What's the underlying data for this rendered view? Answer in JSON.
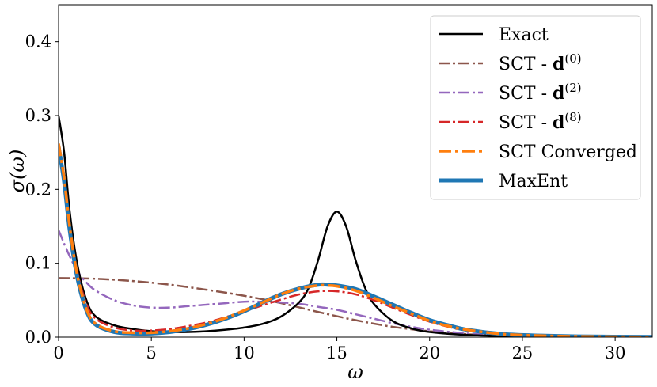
{
  "chart_data": {
    "type": "line",
    "xlabel": "ω",
    "ylabel": "σ(ω)",
    "xlim": [
      0,
      32
    ],
    "ylim": [
      0,
      0.45
    ],
    "xticks": [
      0,
      5,
      10,
      15,
      20,
      25,
      30
    ],
    "yticks": [
      0.0,
      0.1,
      0.2,
      0.3,
      0.4
    ],
    "xtick_labels": [
      "0",
      "5",
      "10",
      "15",
      "20",
      "25",
      "30"
    ],
    "ytick_labels": [
      "0.0",
      "0.1",
      "0.2",
      "0.3",
      "0.4"
    ],
    "legend_position": "top-right",
    "series": [
      {
        "name": "Exact",
        "legend_main": "Exact",
        "legend_sup": "",
        "color": "#000000",
        "dash": "solid",
        "points": [
          [
            0,
            0.3
          ],
          [
            0.3,
            0.25
          ],
          [
            0.6,
            0.17
          ],
          [
            1,
            0.1
          ],
          [
            1.5,
            0.05
          ],
          [
            2,
            0.028
          ],
          [
            3,
            0.016
          ],
          [
            4,
            0.011
          ],
          [
            5,
            0.008
          ],
          [
            6,
            0.007
          ],
          [
            7,
            0.007
          ],
          [
            8,
            0.008
          ],
          [
            9,
            0.01
          ],
          [
            10,
            0.013
          ],
          [
            11,
            0.018
          ],
          [
            12,
            0.028
          ],
          [
            13,
            0.048
          ],
          [
            13.5,
            0.068
          ],
          [
            14,
            0.105
          ],
          [
            14.5,
            0.15
          ],
          [
            15,
            0.17
          ],
          [
            15.5,
            0.15
          ],
          [
            16,
            0.105
          ],
          [
            16.5,
            0.068
          ],
          [
            17,
            0.045
          ],
          [
            18,
            0.022
          ],
          [
            19,
            0.012
          ],
          [
            20,
            0.007
          ],
          [
            22,
            0.003
          ],
          [
            25,
            0.001
          ],
          [
            28,
            0.0004
          ],
          [
            32,
            0.0001
          ]
        ]
      },
      {
        "name": "SCT - d(0)",
        "legend_main": "SCT - d",
        "legend_sup": "(0)",
        "color": "#8c564b",
        "dash": "dashdot",
        "points": [
          [
            0,
            0.08
          ],
          [
            2,
            0.079
          ],
          [
            4,
            0.076
          ],
          [
            6,
            0.071
          ],
          [
            8,
            0.064
          ],
          [
            10,
            0.056
          ],
          [
            12,
            0.046
          ],
          [
            14,
            0.034
          ],
          [
            16,
            0.023
          ],
          [
            18,
            0.014
          ],
          [
            20,
            0.008
          ],
          [
            22,
            0.004
          ],
          [
            24,
            0.002
          ],
          [
            26,
            0.001
          ],
          [
            28,
            0.0004
          ],
          [
            32,
            0.0001
          ]
        ]
      },
      {
        "name": "SCT - d(2)",
        "legend_main": "SCT - d",
        "legend_sup": "(2)",
        "color": "#9467bd",
        "dash": "dashdot",
        "points": [
          [
            0,
            0.145
          ],
          [
            0.5,
            0.115
          ],
          [
            1,
            0.09
          ],
          [
            1.5,
            0.074
          ],
          [
            2,
            0.063
          ],
          [
            3,
            0.05
          ],
          [
            4,
            0.043
          ],
          [
            5,
            0.04
          ],
          [
            6,
            0.04
          ],
          [
            7,
            0.042
          ],
          [
            8,
            0.044
          ],
          [
            9,
            0.046
          ],
          [
            10,
            0.048
          ],
          [
            11,
            0.048
          ],
          [
            12,
            0.047
          ],
          [
            13,
            0.045
          ],
          [
            14,
            0.041
          ],
          [
            15,
            0.037
          ],
          [
            16,
            0.031
          ],
          [
            17,
            0.025
          ],
          [
            18,
            0.019
          ],
          [
            19,
            0.014
          ],
          [
            20,
            0.01
          ],
          [
            22,
            0.005
          ],
          [
            24,
            0.002
          ],
          [
            26,
            0.001
          ],
          [
            28,
            0.0004
          ],
          [
            32,
            0.0001
          ]
        ]
      },
      {
        "name": "SCT - d(8)",
        "legend_main": "SCT - d",
        "legend_sup": "(8)",
        "color": "#d62728",
        "dash": "dashdot",
        "points": [
          [
            0,
            0.255
          ],
          [
            0.3,
            0.21
          ],
          [
            0.6,
            0.15
          ],
          [
            1,
            0.09
          ],
          [
            1.5,
            0.045
          ],
          [
            2,
            0.025
          ],
          [
            3,
            0.013
          ],
          [
            4,
            0.009
          ],
          [
            5,
            0.009
          ],
          [
            6,
            0.011
          ],
          [
            7,
            0.015
          ],
          [
            8,
            0.02
          ],
          [
            9,
            0.027
          ],
          [
            10,
            0.035
          ],
          [
            11,
            0.043
          ],
          [
            12,
            0.051
          ],
          [
            13,
            0.058
          ],
          [
            14,
            0.062
          ],
          [
            15,
            0.062
          ],
          [
            16,
            0.058
          ],
          [
            17,
            0.05
          ],
          [
            18,
            0.04
          ],
          [
            19,
            0.03
          ],
          [
            20,
            0.021
          ],
          [
            21,
            0.014
          ],
          [
            22,
            0.009
          ],
          [
            24,
            0.004
          ],
          [
            26,
            0.002
          ],
          [
            28,
            0.001
          ],
          [
            32,
            0.0002
          ]
        ]
      },
      {
        "name": "SCT Converged",
        "legend_main": "SCT Converged",
        "legend_sup": "",
        "color": "#ff7f0e",
        "dash": "dashdot-wide",
        "points": [
          [
            0,
            0.262
          ],
          [
            0.3,
            0.215
          ],
          [
            0.6,
            0.15
          ],
          [
            1,
            0.085
          ],
          [
            1.5,
            0.038
          ],
          [
            2,
            0.018
          ],
          [
            3,
            0.008
          ],
          [
            4,
            0.006
          ],
          [
            5,
            0.006
          ],
          [
            6,
            0.008
          ],
          [
            7,
            0.012
          ],
          [
            8,
            0.018
          ],
          [
            9,
            0.026
          ],
          [
            10,
            0.036
          ],
          [
            11,
            0.047
          ],
          [
            12,
            0.058
          ],
          [
            13,
            0.066
          ],
          [
            14,
            0.07
          ],
          [
            14.5,
            0.07
          ],
          [
            15,
            0.069
          ],
          [
            16,
            0.063
          ],
          [
            17,
            0.053
          ],
          [
            18,
            0.042
          ],
          [
            19,
            0.032
          ],
          [
            20,
            0.022
          ],
          [
            21,
            0.015
          ],
          [
            22,
            0.01
          ],
          [
            24,
            0.004
          ],
          [
            26,
            0.002
          ],
          [
            28,
            0.001
          ],
          [
            32,
            0.0002
          ]
        ]
      },
      {
        "name": "MaxEnt",
        "legend_main": "MaxEnt",
        "legend_sup": "",
        "color": "#1f77b4",
        "dash": "solid-thick",
        "points": [
          [
            0,
            0.258
          ],
          [
            0.3,
            0.21
          ],
          [
            0.6,
            0.145
          ],
          [
            1,
            0.082
          ],
          [
            1.5,
            0.036
          ],
          [
            2,
            0.017
          ],
          [
            3,
            0.007
          ],
          [
            4,
            0.005
          ],
          [
            5,
            0.005
          ],
          [
            6,
            0.007
          ],
          [
            7,
            0.011
          ],
          [
            8,
            0.017
          ],
          [
            9,
            0.025
          ],
          [
            10,
            0.035
          ],
          [
            11,
            0.047
          ],
          [
            12,
            0.058
          ],
          [
            13,
            0.066
          ],
          [
            14,
            0.071
          ],
          [
            14.5,
            0.071
          ],
          [
            15,
            0.07
          ],
          [
            16,
            0.065
          ],
          [
            17,
            0.055
          ],
          [
            18,
            0.044
          ],
          [
            19,
            0.033
          ],
          [
            20,
            0.023
          ],
          [
            21,
            0.016
          ],
          [
            22,
            0.01
          ],
          [
            24,
            0.004
          ],
          [
            26,
            0.002
          ],
          [
            28,
            0.001
          ],
          [
            32,
            0.0002
          ]
        ]
      }
    ]
  }
}
